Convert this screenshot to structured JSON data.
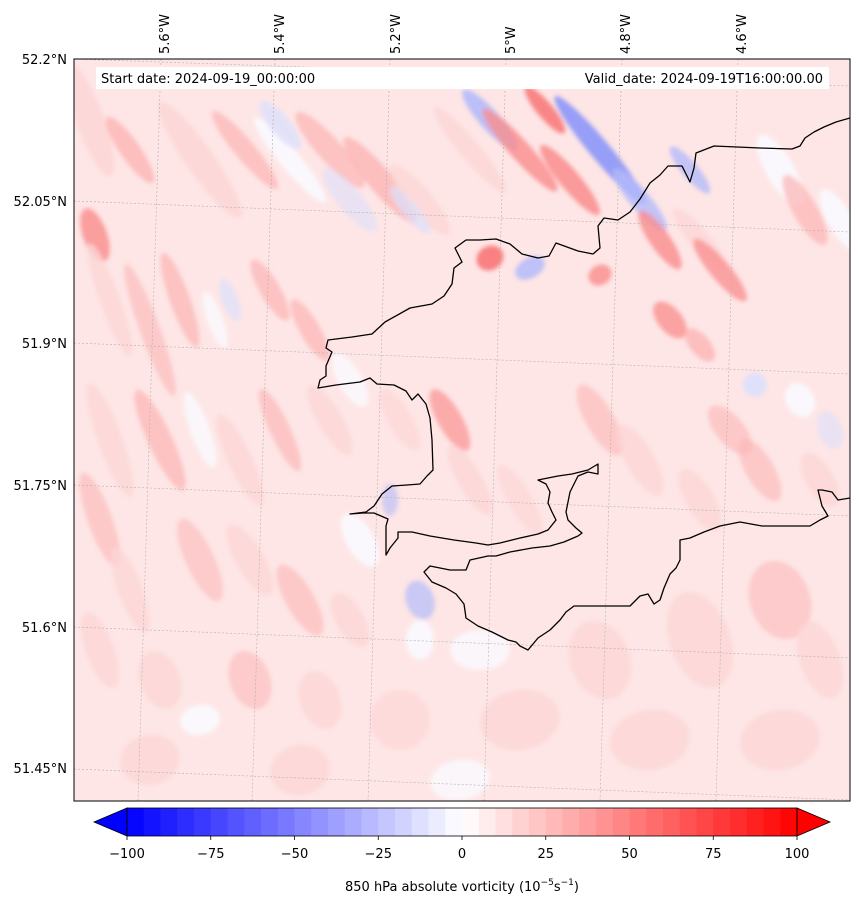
{
  "map": {
    "title_left": "Start date: 2024-09-19_00:00:00",
    "title_right": "Valid_date: 2024-09-19T16:00:00.00",
    "lon_labels": [
      "5.6°W",
      "5.4°W",
      "5.2°W",
      "5°W",
      "4.8°W",
      "4.6°W"
    ],
    "lat_labels": [
      "52.2°N",
      "52.05°N",
      "51.9°N",
      "51.75°N",
      "51.6°N",
      "51.45°N"
    ],
    "field": "850 hPa absolute vorticity",
    "coastline_color": "#000000"
  },
  "colorbar": {
    "label_main": "850 hPa absolute vorticity (10",
    "label_exp1": "−5",
    "label_mid": "s",
    "label_exp2": "−1",
    "label_end": ")",
    "ticks": [
      "−100",
      "−75",
      "−50",
      "−25",
      "0",
      "25",
      "50",
      "75",
      "100"
    ],
    "range": [
      -100,
      100
    ],
    "levels": 40,
    "low_color": "#0000ff",
    "mid_color": "#ffffff",
    "high_color": "#ff0000",
    "extend": "both"
  }
}
